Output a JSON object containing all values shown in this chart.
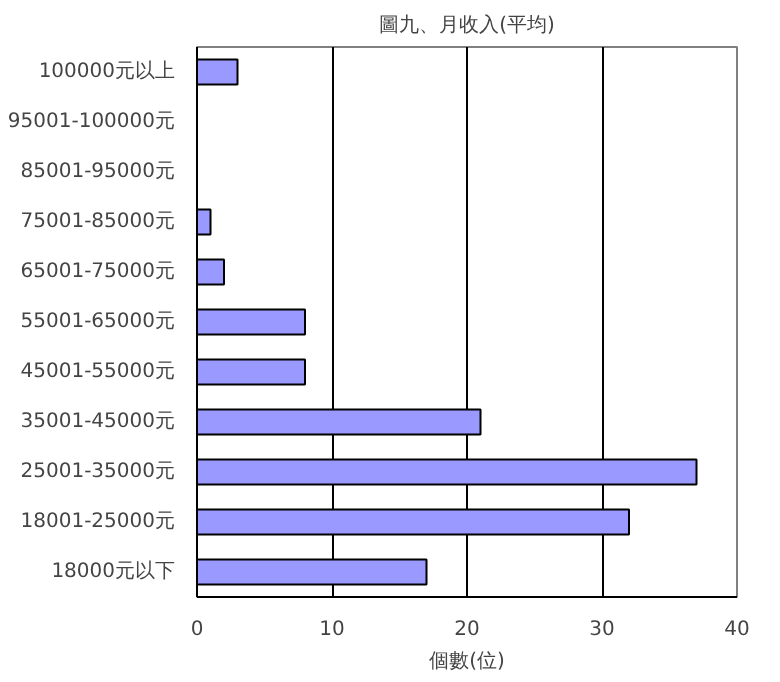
{
  "chart_data": {
    "type": "bar",
    "orientation": "horizontal",
    "title": "圖九、月收入(平均)",
    "xlabel": "個數(位)",
    "categories": [
      "100000元以上",
      "95001-100000元",
      "85001-95000元",
      "75001-85000元",
      "65001-75000元",
      "55001-65000元",
      "45001-55000元",
      "35001-45000元",
      "25001-35000元",
      "18001-25000元",
      "18000元以下"
    ],
    "values": [
      3,
      0,
      0,
      1,
      2,
      8,
      8,
      21,
      37,
      32,
      17
    ],
    "color": "#9999ff",
    "xlim": [
      0,
      40
    ],
    "xticks": [
      0,
      10,
      20,
      30,
      40
    ],
    "grid": "x"
  }
}
